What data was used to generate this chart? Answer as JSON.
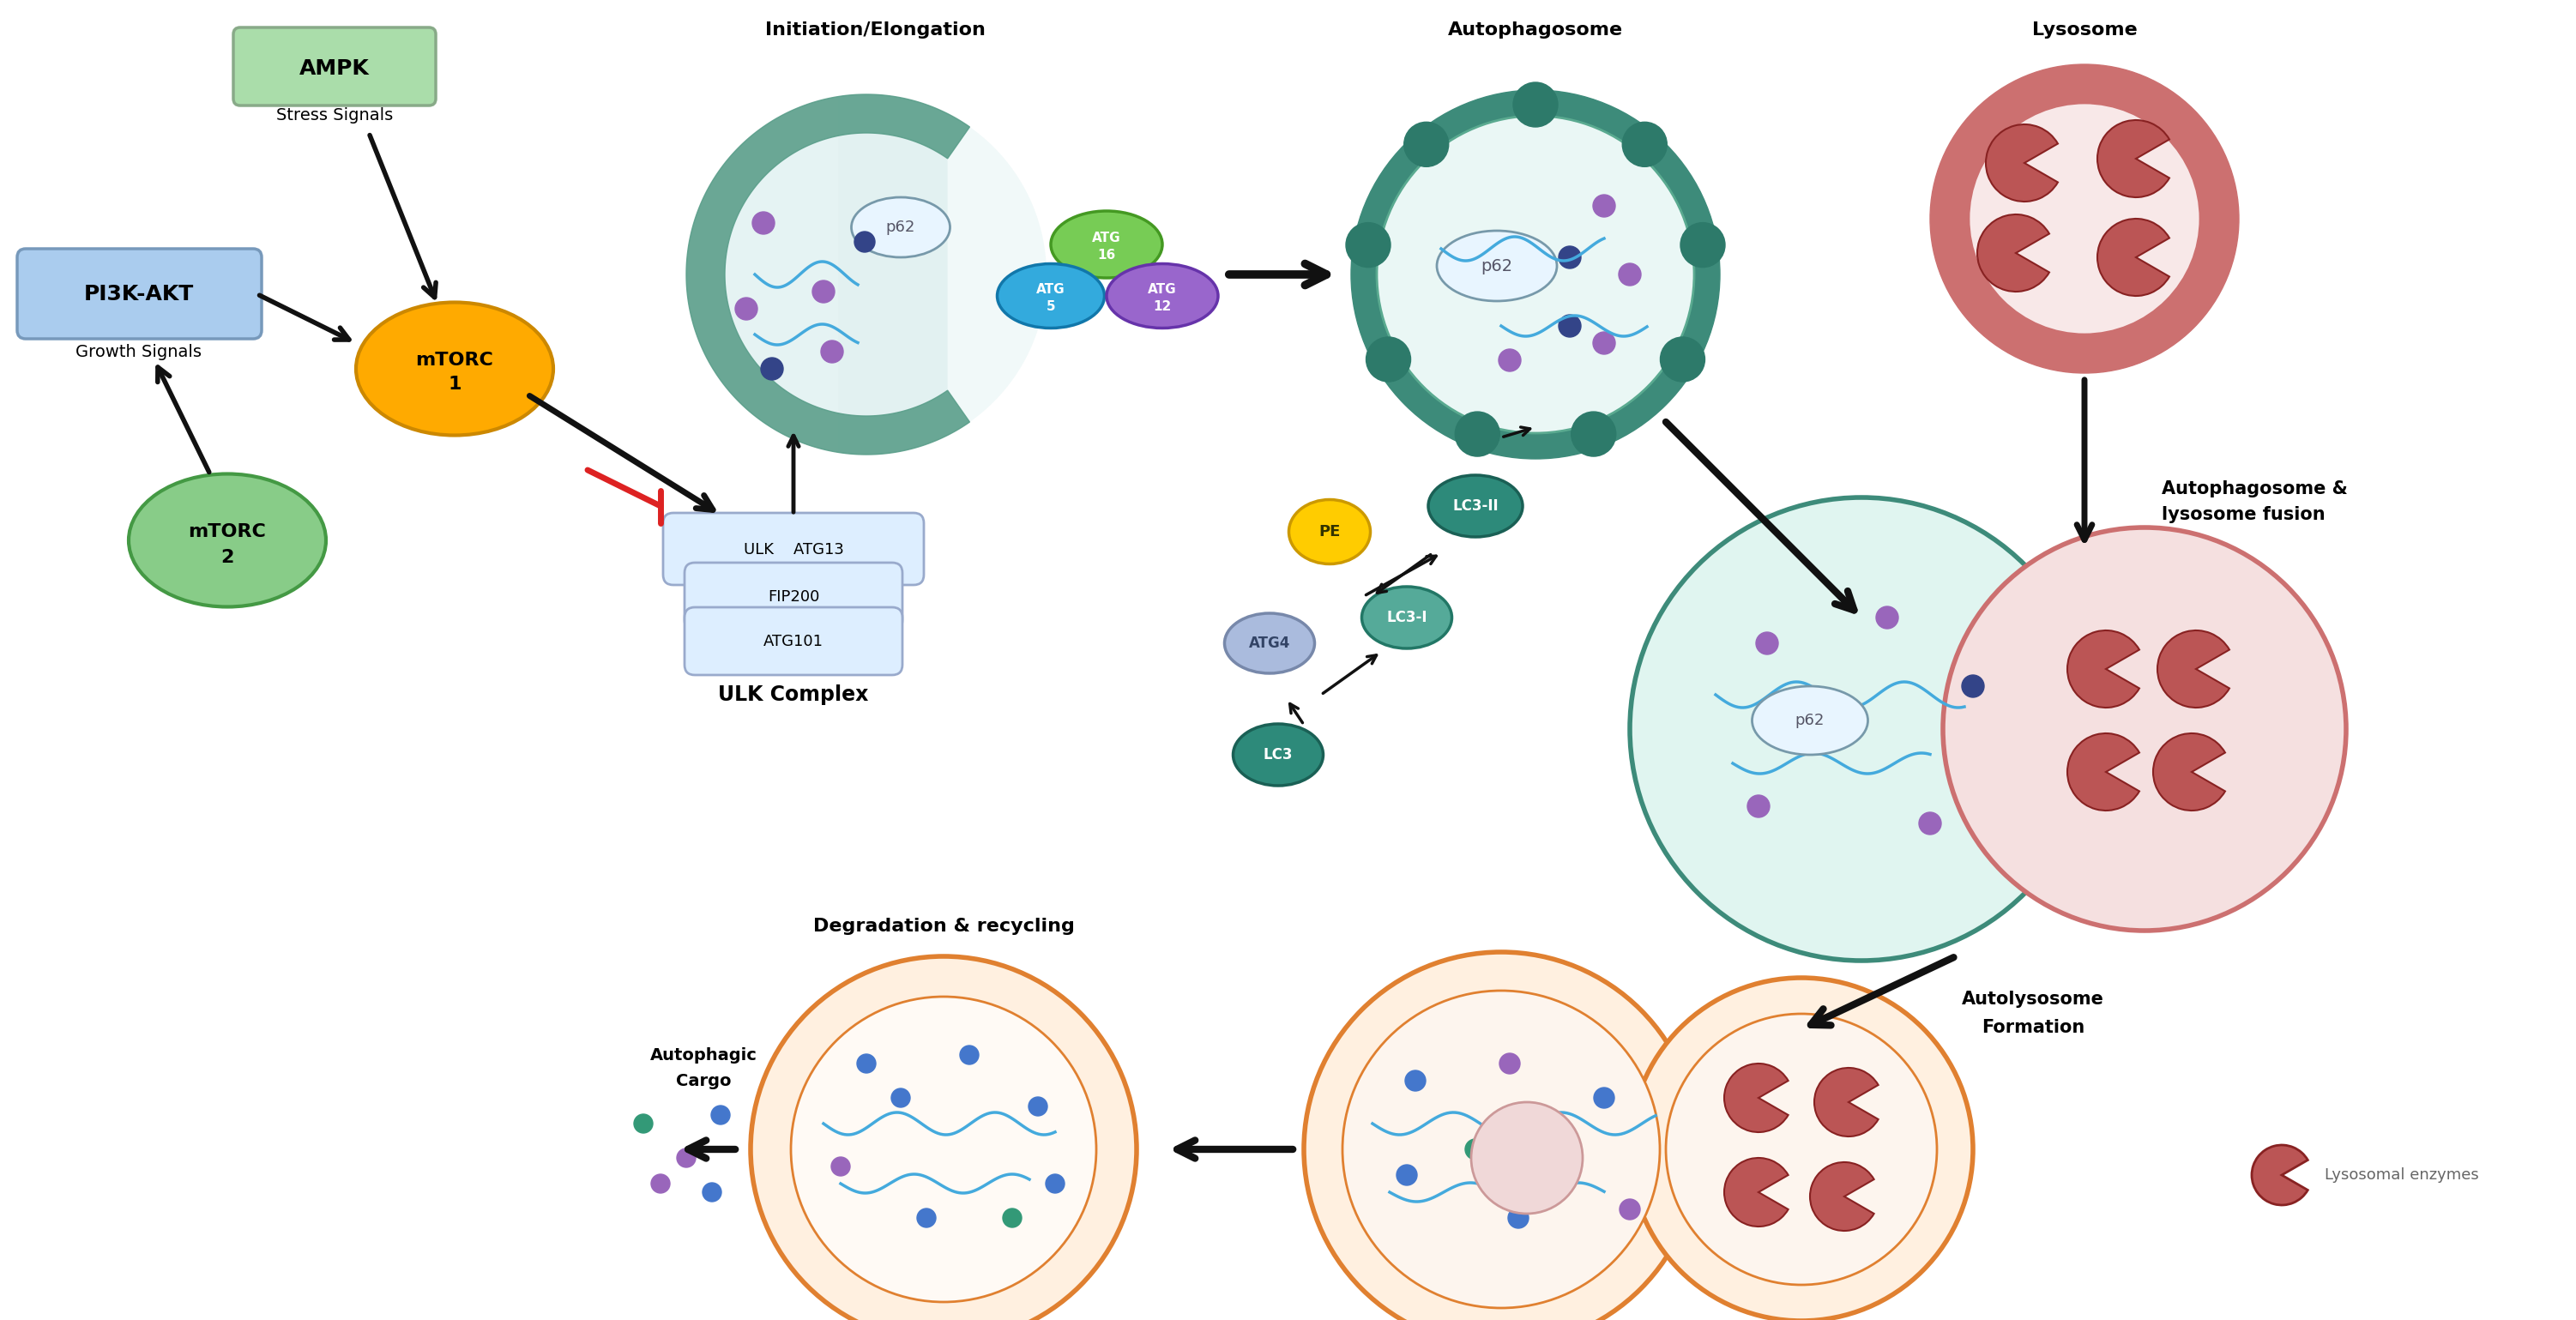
{
  "bg_color": "#ffffff",
  "labels": {
    "ampk": "AMPK",
    "stress": "Stress Signals",
    "pi3k": "PI3K-AKT",
    "growth": "Growth Signals",
    "mtorc1_line1": "mTORC",
    "mtorc1_line2": "1",
    "mtorc2_line1": "mTORC",
    "mtorc2_line2": "2",
    "ulk_complex": "ULK Complex",
    "ulk_row1": "ULK    ATG13",
    "ulk_row2": "FIP200",
    "ulk_row3": "ATG101",
    "initiation": "Initiation/Elongation",
    "autophagosome": "Autophagosome",
    "lysosome": "Lysosome",
    "fusion_line1": "Autophagosome &",
    "fusion_line2": "lysosome fusion",
    "autolysosome_line1": "Autolysosome",
    "autolysosome_line2": "Formation",
    "degradation": "Degradation & recycling",
    "cargo_line1": "Autophagic",
    "cargo_line2": "Cargo",
    "lys_enzymes": "Lysosomal enzymes",
    "p62": "p62",
    "pe": "PE",
    "lc3": "LC3",
    "lc3i": "LC3-I",
    "lc3ii": "LC3-II",
    "atg4": "ATG4",
    "atg5_line1": "ATG",
    "atg5_line2": "5",
    "atg12_line1": "ATG",
    "atg12_line2": "12",
    "atg16_line1": "ATG",
    "atg16_line2": "16"
  },
  "colors": {
    "ampk_box_fill": "#aaddaa",
    "ampk_box_edge": "#88aa88",
    "pi3k_box_fill": "#aaccee",
    "pi3k_box_edge": "#7799bb",
    "mtorc1_fill": "#ffaa00",
    "mtorc1_edge": "#cc8800",
    "mtorc2_fill": "#88cc88",
    "mtorc2_edge": "#449944",
    "ulk_fill": "#ddeeff",
    "ulk_edge": "#99aacc",
    "phagophore_band": "#5a9e8a",
    "phagophore_inner": "#dff0f0",
    "phagophore_bg": "#e8f5f5",
    "p62_fill": "#e8f5ff",
    "p62_edge": "#7799aa",
    "auto_outer": "#3d8b7a",
    "auto_inner_fill": "#eaf7f5",
    "auto_inner_edge": "#5aaa90",
    "auto_dot": "#2d7a6a",
    "lyso_outer": "#cc7070",
    "lyso_inner_fill": "#f8e8e8",
    "lyso_inner_edge": "#cc7070",
    "enzyme_fill": "#bb5555",
    "enzyme_edge": "#882222",
    "pe_fill": "#ffcc00",
    "pe_edge": "#cc9900",
    "lc3i_fill": "#55aa99",
    "lc3i_edge": "#227766",
    "lc3ii_fill": "#2d8a7a",
    "lc3ii_edge": "#1a6055",
    "atg4_fill": "#aabbdd",
    "atg4_edge": "#7788aa",
    "atg5_fill": "#33aadd",
    "atg5_edge": "#1177aa",
    "atg12_fill": "#9966cc",
    "atg12_edge": "#6633aa",
    "atg16_fill": "#77cc55",
    "atg16_edge": "#449922",
    "lc3_fill": "#2d8a7a",
    "lc3_edge": "#1a6055",
    "red_inhibit": "#dd2222",
    "arrow": "#111111",
    "fusion_green_fill": "#e0f5f0",
    "fusion_green_edge": "#3d8b7a",
    "fusion_pink_fill": "#f5e0e0",
    "fusion_pink_edge": "#cc7070",
    "autolyso_fill": "#fff0e0",
    "autolyso_edge": "#e08030",
    "autolyso_inner": "#fdf5ee",
    "deg_fill": "#fff0e0",
    "deg_edge": "#e08030",
    "deg_inner": "#fffaf5",
    "dot_purple": "#9966bb",
    "dot_blue_dark": "#334488",
    "dot_blue": "#4477cc",
    "dot_teal": "#339977",
    "wavy": "#44aadd"
  }
}
